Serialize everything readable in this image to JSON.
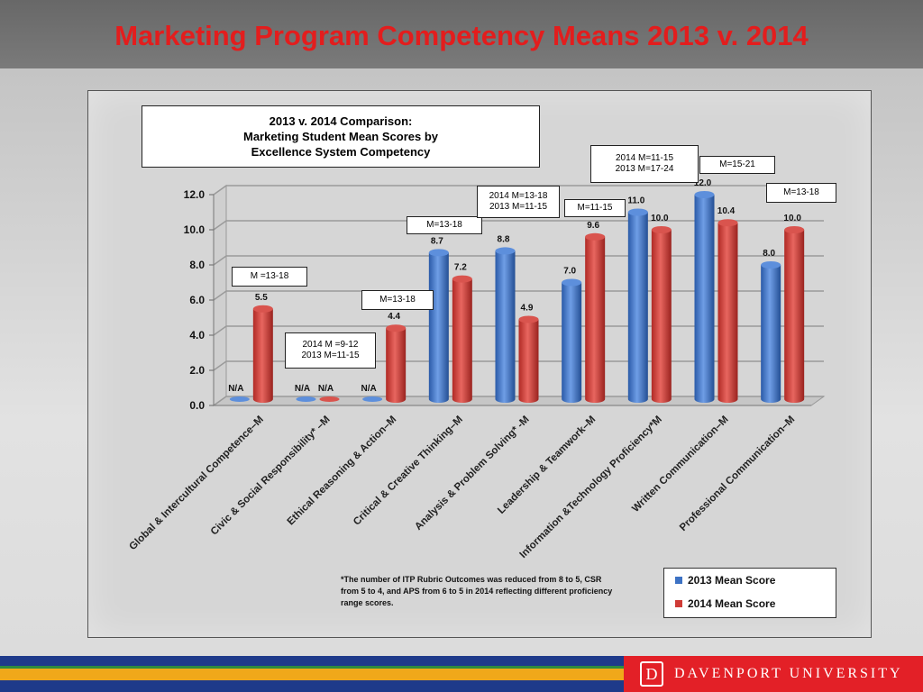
{
  "slide_title": "Marketing Program Competency Means 2013 v. 2014",
  "chart_box_title": [
    "2013 v. 2014 Comparison:",
    "Marketing Student Mean Scores by",
    "Excellence System Competency"
  ],
  "footnote": "*The number of ITP Rubric Outcomes was reduced from 8 to 5, CSR from 5 to 4, and APS from 6 to 5 in 2014 reflecting different proficiency range scores.",
  "brand": {
    "logo_letter": "D",
    "name": "DAVENPORT UNIVERSITY"
  },
  "colors": {
    "series_2013": "#3d72c4",
    "series_2014": "#cf3b36",
    "title": "#e31d1d",
    "brand": "#e32027",
    "stripe_navy": "#1e3a8a",
    "stripe_green": "#2e8b3e",
    "stripe_gold": "#f0a81a"
  },
  "callouts": [
    {
      "id": "global",
      "text": "M =13-18"
    },
    {
      "id": "civic",
      "text": "2014  M =9-12\n2013 M=11-15"
    },
    {
      "id": "ethical",
      "text": "M=13-18"
    },
    {
      "id": "critical",
      "text": "M=13-18"
    },
    {
      "id": "analysis",
      "text": "2014 M=13-18\n2013 M=11-15"
    },
    {
      "id": "leadership",
      "text": "M=11-15"
    },
    {
      "id": "info-tech",
      "text": "2014 M=11-15\n2013 M=17-24"
    },
    {
      "id": "written",
      "text": "M=15-21"
    },
    {
      "id": "professional",
      "text": "M=13-18"
    }
  ],
  "chart_data": {
    "type": "bar",
    "title": "2013 v. 2014 Comparison: Marketing Student Mean Scores by Excellence System Competency",
    "categories": [
      "Global & Intercultural Competence–M",
      "Civic & Social Responsibility* –M",
      "Ethical Reasoning & Action–M",
      "Critical & Creative Thinking–M",
      "Analysis & Problem Solving* -M",
      "Leadership & Teamwork–M",
      "Information &Technology Proficiency*M",
      "Written Communication–M",
      "Professional Communication–M"
    ],
    "series": [
      {
        "name": "2013 Mean Score",
        "values": [
          null,
          null,
          null,
          8.7,
          8.8,
          7.0,
          11.0,
          12.0,
          8.0
        ],
        "labels": [
          "N/A",
          "N/A",
          "N/A",
          "8.7",
          "8.8",
          "7.0",
          "11.0",
          "12.0",
          "8.0"
        ]
      },
      {
        "name": "2014 Mean Score",
        "values": [
          5.5,
          null,
          4.4,
          7.2,
          4.9,
          9.6,
          10.0,
          10.4,
          10.0
        ],
        "labels": [
          "5.5",
          "N/A",
          "4.4",
          "7.2",
          "4.9",
          "9.6",
          "10.0",
          "10.4",
          "10.0"
        ]
      }
    ],
    "ylim": [
      0,
      12
    ],
    "yticks": [
      "0.0",
      "2.0",
      "4.0",
      "6.0",
      "8.0",
      "10.0",
      "12.0"
    ],
    "xlabel": "",
    "ylabel": "",
    "grid": true,
    "legend_position": "bottom-right"
  }
}
